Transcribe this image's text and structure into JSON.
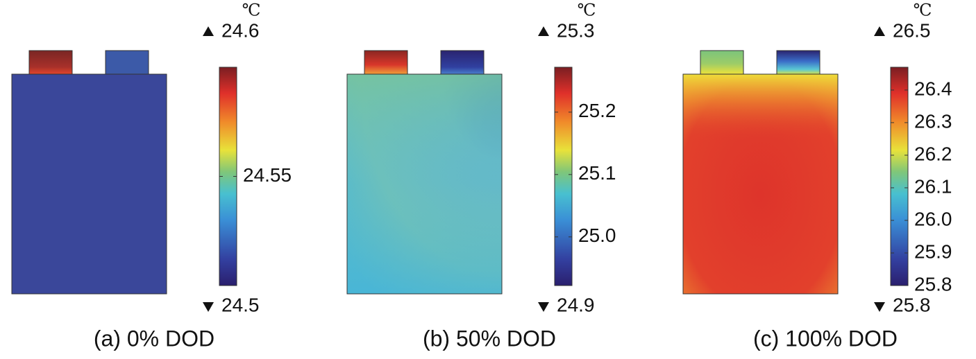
{
  "panels": [
    {
      "caption": "(a) 0% DOD",
      "unit": "℃",
      "max": 24.6,
      "min": 24.5,
      "clim": [
        24.5,
        24.6
      ],
      "ticks": [
        24.55
      ]
    },
    {
      "caption": "(b) 50% DOD",
      "unit": "℃",
      "max": 25.3,
      "min": 24.9,
      "clim": [
        24.922,
        25.272
      ],
      "ticks": [
        25.2,
        25.1,
        {
          "value": 25.0,
          "label": "25.0"
        }
      ]
    },
    {
      "caption": "(c) 100% DOD",
      "unit": "℃",
      "max": 26.5,
      "min": 25.8,
      "clim": [
        25.8,
        26.47
      ],
      "ticks": [
        26.4,
        26.3,
        26.2,
        26.1,
        {
          "value": 26.0,
          "label": "26.0"
        },
        25.9,
        25.8
      ]
    }
  ]
}
